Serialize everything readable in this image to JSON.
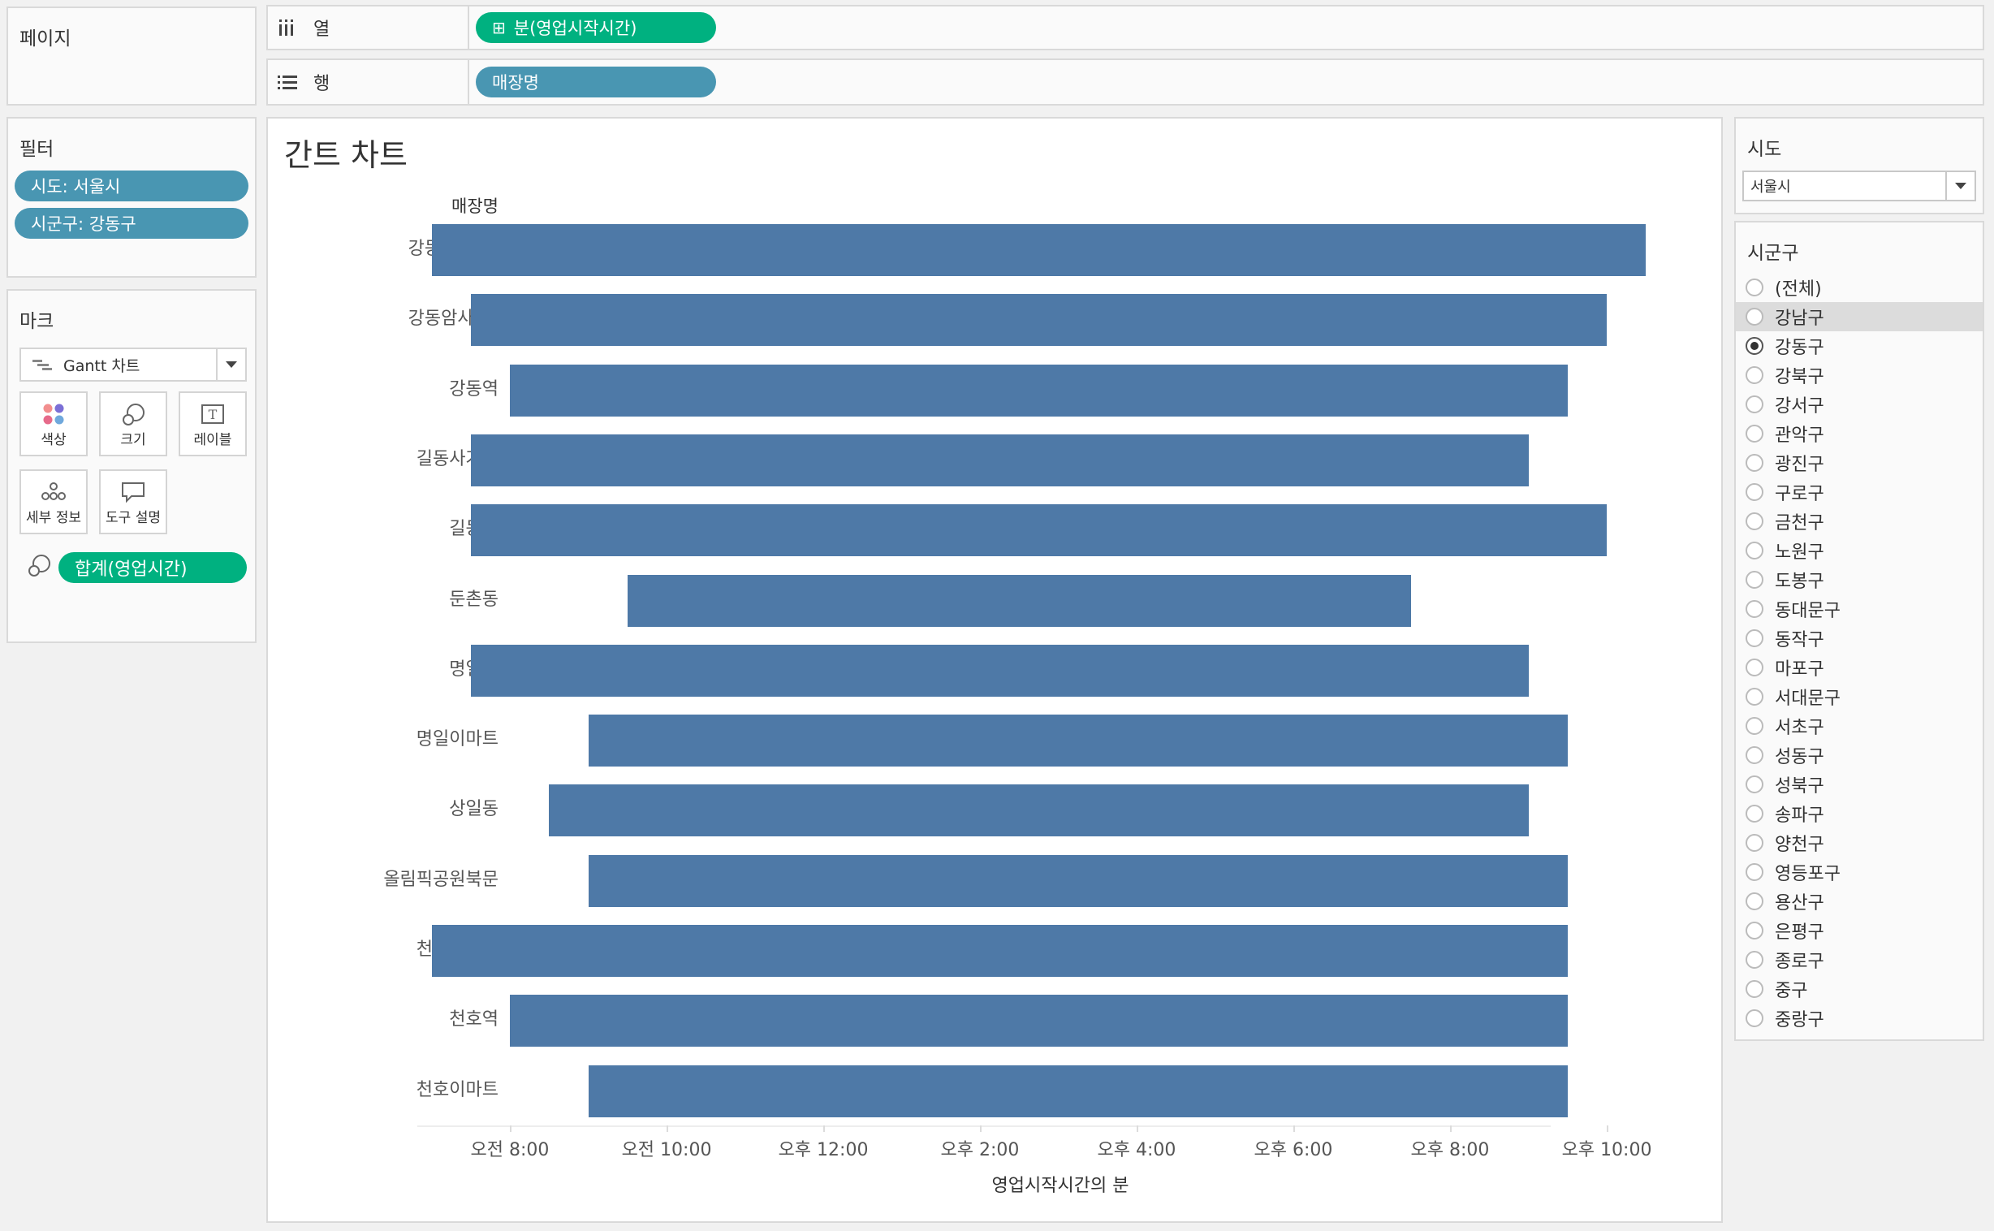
{
  "pages_shelf": {
    "title": "페이지"
  },
  "columns_shelf": {
    "label": "열",
    "pill": "분(영업시작시간)",
    "pill_prefix": "⊞"
  },
  "rows_shelf": {
    "label": "행",
    "pill": "매장명"
  },
  "filters": {
    "title": "필터",
    "items": [
      "시도: 서울시",
      "시군구: 강동구"
    ]
  },
  "marks": {
    "title": "마크",
    "mark_type": "Gantt 차트",
    "buttons": [
      "색상",
      "크기",
      "레이블",
      "세부 정보",
      "도구 설명"
    ],
    "size_pill": "합계(영업시간)"
  },
  "chart": {
    "title": "간트 차트",
    "row_header": "매장명",
    "x_title": "영업시작시간의 분",
    "x_ticks": [
      "오전 8:00",
      "오전 10:00",
      "오후 12:00",
      "오후 2:00",
      "오후 4:00",
      "오후 6:00",
      "오후 8:00",
      "오후 10:00"
    ],
    "bar_color": "#4e79a7"
  },
  "chart_data": {
    "type": "gantt",
    "xlabel": "영업시작시간의 분",
    "ylabel": "매장명",
    "xlim_hours": [
      7.5,
      23.5
    ],
    "categories": [
      "강동구청DT",
      "강동암사DT",
      "강동역",
      "길동사거리",
      "길동역",
      "둔촌동",
      "명일역",
      "명일이마트",
      "상일동",
      "올림픽공원북문",
      "천호로데오",
      "천호역",
      "천호이마트"
    ],
    "start_hours": [
      7.0,
      7.5,
      8.0,
      7.5,
      7.5,
      9.5,
      7.5,
      9.0,
      8.5,
      9.0,
      7.0,
      8.0,
      9.0
    ],
    "end_hours": [
      22.5,
      22.0,
      21.5,
      21.0,
      22.0,
      19.5,
      21.0,
      21.5,
      21.0,
      21.5,
      21.5,
      21.5,
      21.5
    ]
  },
  "sido_filter": {
    "title": "시도",
    "value": "서울시"
  },
  "sigungu_filter": {
    "title": "시군구",
    "options": [
      "(전체)",
      "강남구",
      "강동구",
      "강북구",
      "강서구",
      "관악구",
      "광진구",
      "구로구",
      "금천구",
      "노원구",
      "도봉구",
      "동대문구",
      "동작구",
      "마포구",
      "서대문구",
      "서초구",
      "성동구",
      "성북구",
      "송파구",
      "양천구",
      "영등포구",
      "용산구",
      "은평구",
      "종로구",
      "중구",
      "중랑구"
    ],
    "selected": "강동구",
    "highlighted": "강남구"
  }
}
